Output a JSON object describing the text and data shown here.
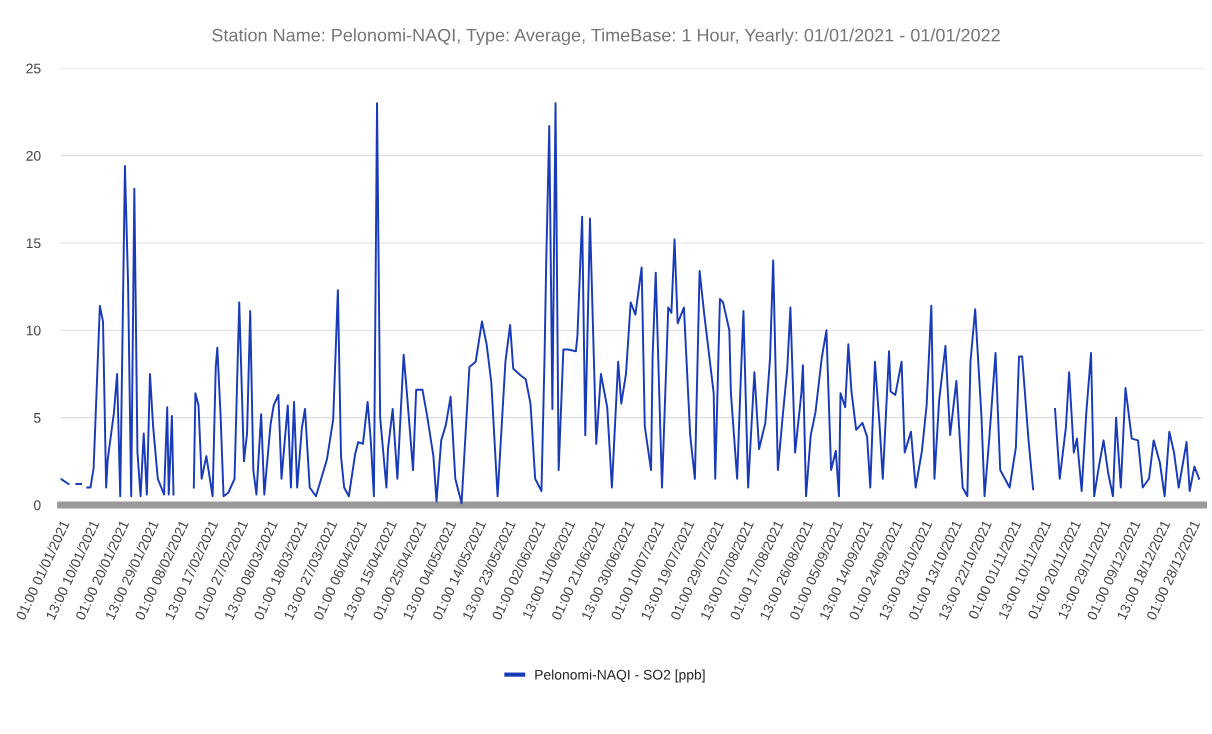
{
  "chart_data": {
    "type": "line",
    "title": "Station Name: Pelonomi-NAQI, Type: Average, TimeBase: 1 Hour, Yearly: 01/01/2021 - 01/01/2022",
    "series": [
      {
        "name": "Pelonomi-NAQI - SO2 [ppb]",
        "color": "#1a3bb8",
        "x": [
          "2021-01-01T01:00",
          "2021-01-03T13:00",
          "2021-01-05T01:00",
          "2021-01-06T01:00",
          "2021-01-07T13:00",
          "2021-01-08T13:00",
          "2021-01-09T13:00",
          "2021-01-10T13:00",
          "2021-01-11T13:00",
          "2021-01-13T13:00",
          "2021-01-14T13:00",
          "2021-01-15T13:00",
          "2021-01-16T01:00",
          "2021-01-18T01:00",
          "2021-01-19T01:00",
          "2021-01-20T01:00",
          "2021-01-21T13:00",
          "2021-01-22T13:00",
          "2021-01-23T13:00",
          "2021-01-24T13:00",
          "2021-01-25T13:00",
          "2021-01-26T13:00",
          "2021-01-27T13:00",
          "2021-01-28T13:00",
          "2021-01-29T13:00",
          "2021-01-30T13:00",
          "2021-02-01T01:00",
          "2021-02-03T01:00",
          "2021-02-04T01:00",
          "2021-02-04T13:00",
          "2021-02-05T13:00",
          "2021-02-06T01:00",
          "2021-02-09T01:00",
          "2021-02-12T13:00",
          "2021-02-13T01:00",
          "2021-02-14T01:00",
          "2021-02-15T01:00",
          "2021-02-16T13:00",
          "2021-02-18T13:00",
          "2021-02-19T13:00",
          "2021-02-20T01:00",
          "2021-02-21T01:00",
          "2021-02-22T01:00",
          "2021-02-23T13:00",
          "2021-02-25T13:00",
          "2021-02-27T01:00",
          "2021-02-28T13:00",
          "2021-03-01T13:00",
          "2021-03-02T13:00",
          "2021-03-03T13:00",
          "2021-03-04T13:00",
          "2021-03-06T01:00",
          "2021-03-07T01:00",
          "2021-03-09T01:00",
          "2021-03-10T01:00",
          "2021-03-11T13:00",
          "2021-03-12T13:00",
          "2021-03-14T13:00",
          "2021-03-15T13:00",
          "2021-03-16T13:00",
          "2021-03-17T13:00",
          "2021-03-19T01:00",
          "2021-03-20T01:00",
          "2021-03-21T13:00",
          "2021-03-23T13:00",
          "2021-03-27T01:00",
          "2021-03-29T01:00",
          "2021-03-30T13:00",
          "2021-03-31T13:00",
          "2021-04-01T13:00",
          "2021-04-03T01:00",
          "2021-04-05T01:00",
          "2021-04-06T01:00",
          "2021-04-07T13:00",
          "2021-04-09T01:00",
          "2021-04-10T01:00",
          "2021-04-11T01:00",
          "2021-04-12T01:00",
          "2021-04-13T01:00",
          "2021-04-15T01:00",
          "2021-04-15T13:00",
          "2021-04-17T01:00",
          "2021-04-18T13:00",
          "2021-04-20T13:00",
          "2021-04-21T13:00",
          "2021-04-23T13:00",
          "2021-04-24T13:00",
          "2021-04-26T13:00",
          "2021-04-28T01:00",
          "2021-04-30T01:00",
          "2021-05-01T01:00",
          "2021-05-02T13:00",
          "2021-05-04T01:00",
          "2021-05-05T13:00",
          "2021-05-07T01:00",
          "2021-05-09T01:00",
          "2021-05-11T13:00",
          "2021-05-13T13:00",
          "2021-05-15T13:00",
          "2021-05-17T01:00",
          "2021-05-18T13:00",
          "2021-05-20T13:00",
          "2021-05-23T01:00",
          "2021-05-24T13:00",
          "2021-05-25T13:00",
          "2021-05-28T01:00",
          "2021-05-29T13:00",
          "2021-05-31T01:00",
          "2021-06-01T13:00",
          "2021-06-03T13:00",
          "2021-06-04T13:00",
          "2021-06-05T01:00",
          "2021-06-06T01:00",
          "2021-06-07T01:00",
          "2021-06-08T01:00",
          "2021-06-09T01:00",
          "2021-06-10T13:00",
          "2021-06-12T01:00",
          "2021-06-14T13:00",
          "2021-06-15T01:00",
          "2021-06-16T13:00",
          "2021-06-17T13:00",
          "2021-06-19T01:00",
          "2021-06-21T01:00",
          "2021-06-22T13:00",
          "2021-06-24T13:00",
          "2021-06-26T01:00",
          "2021-06-28T01:00",
          "2021-06-29T01:00",
          "2021-06-30T13:00",
          "2021-07-02T01:00",
          "2021-07-03T13:00",
          "2021-07-05T13:00",
          "2021-07-06T13:00",
          "2021-07-08T13:00",
          "2021-07-09T01:00",
          "2021-07-10T01:00",
          "2021-07-12T01:00",
          "2021-07-14T01:00",
          "2021-07-15T01:00",
          "2021-07-16T01:00",
          "2021-07-17T01:00",
          "2021-07-19T01:00",
          "2021-07-21T01:00",
          "2021-07-22T13:00",
          "2021-07-24T01:00",
          "2021-07-25T13:00",
          "2021-07-27T13:00",
          "2021-07-28T13:00",
          "2021-07-29T01:00",
          "2021-07-30T13:00",
          "2021-07-31T13:00",
          "2021-08-02T13:00",
          "2021-08-03T01:00",
          "2021-08-05T01:00",
          "2021-08-06T01:00",
          "2021-08-07T01:00",
          "2021-08-08T13:00",
          "2021-08-10T13:00",
          "2021-08-12T01:00",
          "2021-08-14T01:00",
          "2021-08-15T13:00",
          "2021-08-16T13:00",
          "2021-08-18T01:00",
          "2021-08-19T13:00",
          "2021-08-21T01:00",
          "2021-08-22T01:00",
          "2021-08-23T13:00",
          "2021-08-25T13:00",
          "2021-08-26T01:00",
          "2021-08-27T01:00",
          "2021-08-28T13:00",
          "2021-08-30T01:00",
          "2021-09-01T01:00",
          "2021-09-02T13:00",
          "2021-09-04T01:00",
          "2021-09-05T13:00",
          "2021-09-06T13:00",
          "2021-09-07T01:00",
          "2021-09-08T13:00",
          "2021-09-09T13:00",
          "2021-09-10T13:00",
          "2021-09-12T01:00",
          "2021-09-14T01:00",
          "2021-09-15T13:00",
          "2021-09-16T13:00",
          "2021-09-18T01:00",
          "2021-09-19T13:00",
          "2021-09-20T13:00",
          "2021-09-22T13:00",
          "2021-09-23T01:00",
          "2021-09-24T13:00",
          "2021-09-26T13:00",
          "2021-09-27T13:00",
          "2021-09-29T13:00",
          "2021-10-01T01:00",
          "2021-10-03T01:00",
          "2021-10-04T13:00",
          "2021-10-06T01:00",
          "2021-10-07T01:00",
          "2021-10-08T13:00",
          "2021-10-10T13:00",
          "2021-10-12T01:00",
          "2021-10-14T01:00",
          "2021-10-16T01:00",
          "2021-10-17T13:00",
          "2021-10-18T13:00",
          "2021-10-20T01:00",
          "2021-10-22T01:00",
          "2021-10-23T01:00",
          "2021-10-24T13:00",
          "2021-10-26T13:00",
          "2021-10-28T01:00",
          "2021-10-29T13:00",
          "2021-10-31T01:00",
          "2021-11-02T01:00",
          "2021-11-03T01:00",
          "2021-11-04T01:00",
          "2021-11-06T01:00",
          "2021-11-07T13:00",
          "2021-11-11T01:00",
          "2021-11-14T13:00",
          "2021-11-16T01:00",
          "2021-11-18T01:00",
          "2021-11-19T01:00",
          "2021-11-20T13:00",
          "2021-11-21T13:00",
          "2021-11-23T01:00",
          "2021-11-24T13:00",
          "2021-11-26T01:00",
          "2021-11-27T01:00",
          "2021-11-28T13:00",
          "2021-11-30T01:00",
          "2021-12-01T13:00",
          "2021-12-03T01:00",
          "2021-12-04T01:00",
          "2021-12-05T13:00",
          "2021-12-07T01:00",
          "2021-12-09T01:00",
          "2021-12-11T01:00",
          "2021-12-12T13:00",
          "2021-12-14T13:00",
          "2021-12-16T01:00",
          "2021-12-18T01:00",
          "2021-12-19T13:00",
          "2021-12-21T01:00",
          "2021-12-22T13:00",
          "2021-12-24T01:00",
          "2021-12-26T13:00",
          "2021-12-27T13:00",
          "2021-12-29T01:00",
          "2021-12-30T13:00"
        ],
        "values": [
          1.5,
          1.2,
          null,
          1.2,
          1.2,
          null,
          1.0,
          1.0,
          2.1,
          11.4,
          10.5,
          1.0,
          2.6,
          5.3,
          7.5,
          0.5,
          19.4,
          12.7,
          0.5,
          18.1,
          3.0,
          0.5,
          4.1,
          0.6,
          7.5,
          4.5,
          1.5,
          0.6,
          5.6,
          0.6,
          5.1,
          0.6,
          null,
          1.0,
          6.4,
          5.7,
          1.5,
          2.8,
          0.5,
          7.9,
          9.0,
          5.3,
          0.5,
          0.7,
          1.5,
          11.6,
          2.5,
          4.1,
          11.1,
          2.0,
          0.6,
          5.2,
          0.6,
          4.6,
          5.7,
          6.3,
          1.5,
          5.7,
          1.0,
          5.9,
          1.0,
          4.4,
          5.5,
          1.0,
          0.5,
          2.6,
          4.9,
          12.3,
          2.8,
          1.0,
          0.5,
          2.9,
          3.6,
          3.5,
          5.9,
          3.7,
          0.5,
          23.0,
          5.0,
          1.0,
          3.2,
          5.5,
          1.5,
          8.6,
          6.5,
          2.0,
          6.6,
          6.6,
          5.1,
          2.8,
          0.2,
          3.7,
          4.6,
          6.2,
          1.5,
          0.1,
          7.9,
          8.2,
          10.5,
          9.2,
          7.0,
          0.5,
          8.2,
          10.3,
          7.8,
          7.4,
          7.2,
          5.8,
          1.5,
          0.8,
          8.5,
          13.7,
          21.7,
          5.5,
          23.0,
          2.0,
          8.9,
          8.9,
          8.8,
          9.7,
          16.5,
          4.0,
          16.4,
          3.5,
          7.5,
          5.6,
          1.0,
          8.2,
          5.8,
          7.5,
          11.6,
          10.9,
          13.6,
          4.5,
          2.0,
          8.5,
          13.3,
          1.0,
          11.3,
          11.0,
          15.2,
          10.4,
          11.3,
          4.0,
          1.5,
          13.4,
          10.9,
          7.9,
          6.4,
          1.5,
          11.8,
          11.6,
          10.0,
          6.4,
          1.5,
          6.5,
          11.1,
          1.0,
          7.6,
          3.2,
          4.7,
          8.4,
          14.0,
          2.0,
          5.0,
          7.8,
          11.3,
          3.0,
          6.4,
          8.0,
          0.5,
          4.0,
          5.3,
          8.4,
          10.0,
          2.0,
          3.1,
          0.5,
          6.4,
          5.6,
          9.2,
          6.5,
          4.3,
          4.7,
          3.9,
          1.0,
          8.2,
          4.5,
          1.5,
          8.8,
          6.5,
          6.3,
          8.2,
          3.0,
          4.2,
          1.0,
          3.1,
          5.7,
          11.4,
          1.5,
          6.0,
          9.1,
          4.0,
          7.1,
          1.0,
          0.5,
          8.2,
          11.2,
          5.1,
          0.5,
          3.8,
          8.7,
          2.0,
          1.5,
          1.0,
          3.3,
          8.5,
          8.5,
          3.8,
          0.9,
          null,
          5.5,
          1.5,
          4.5,
          7.6,
          3.0,
          3.8,
          0.8,
          5.3,
          8.7,
          0.5,
          2.2,
          3.7,
          1.8,
          0.5,
          5.0,
          1.0,
          6.7,
          3.8,
          3.7,
          1.0,
          1.5,
          3.7,
          2.4,
          0.5,
          4.2,
          3.0,
          1.0,
          3.6,
          0.8,
          2.2,
          1.5
        ]
      }
    ],
    "xlim": [
      "2021-01-01T00:00",
      "2021-12-31T23:00"
    ],
    "xticks": [
      {
        "value": "2021-01-01T01:00",
        "label": "01:00 01/01/2021"
      },
      {
        "value": "2021-01-10T13:00",
        "label": "13:00 10/01/2021"
      },
      {
        "value": "2021-01-20T01:00",
        "label": "01:00 20/01/2021"
      },
      {
        "value": "2021-01-29T13:00",
        "label": "13:00 29/01/2021"
      },
      {
        "value": "2021-02-08T01:00",
        "label": "01:00 08/02/2021"
      },
      {
        "value": "2021-02-17T13:00",
        "label": "13:00 17/02/2021"
      },
      {
        "value": "2021-02-27T01:00",
        "label": "01:00 27/02/2021"
      },
      {
        "value": "2021-03-08T13:00",
        "label": "13:00 08/03/2021"
      },
      {
        "value": "2021-03-18T01:00",
        "label": "01:00 18/03/2021"
      },
      {
        "value": "2021-03-27T13:00",
        "label": "13:00 27/03/2021"
      },
      {
        "value": "2021-04-06T01:00",
        "label": "01:00 06/04/2021"
      },
      {
        "value": "2021-04-15T13:00",
        "label": "13:00 15/04/2021"
      },
      {
        "value": "2021-04-25T01:00",
        "label": "01:00 25/04/2021"
      },
      {
        "value": "2021-05-04T13:00",
        "label": "13:00 04/05/2021"
      },
      {
        "value": "2021-05-14T01:00",
        "label": "01:00 14/05/2021"
      },
      {
        "value": "2021-05-23T13:00",
        "label": "13:00 23/05/2021"
      },
      {
        "value": "2021-06-02T01:00",
        "label": "01:00 02/06/2021"
      },
      {
        "value": "2021-06-11T13:00",
        "label": "13:00 11/06/2021"
      },
      {
        "value": "2021-06-21T01:00",
        "label": "01:00 21/06/2021"
      },
      {
        "value": "2021-06-30T13:00",
        "label": "13:00 30/06/2021"
      },
      {
        "value": "2021-07-10T01:00",
        "label": "01:00 10/07/2021"
      },
      {
        "value": "2021-07-19T13:00",
        "label": "13:00 19/07/2021"
      },
      {
        "value": "2021-07-29T01:00",
        "label": "01:00 29/07/2021"
      },
      {
        "value": "2021-08-07T13:00",
        "label": "13:00 07/08/2021"
      },
      {
        "value": "2021-08-17T01:00",
        "label": "01:00 17/08/2021"
      },
      {
        "value": "2021-08-26T13:00",
        "label": "13:00 26/08/2021"
      },
      {
        "value": "2021-09-05T01:00",
        "label": "01:00 05/09/2021"
      },
      {
        "value": "2021-09-14T13:00",
        "label": "13:00 14/09/2021"
      },
      {
        "value": "2021-09-24T01:00",
        "label": "01:00 24/09/2021"
      },
      {
        "value": "2021-10-03T13:00",
        "label": "13:00 03/10/2021"
      },
      {
        "value": "2021-10-13T01:00",
        "label": "01:00 13/10/2021"
      },
      {
        "value": "2021-10-22T13:00",
        "label": "13:00 22/10/2021"
      },
      {
        "value": "2021-11-01T01:00",
        "label": "01:00 01/11/2021"
      },
      {
        "value": "2021-11-10T13:00",
        "label": "13:00 10/11/2021"
      },
      {
        "value": "2021-11-20T01:00",
        "label": "01:00 20/11/2021"
      },
      {
        "value": "2021-11-29T13:00",
        "label": "13:00 29/11/2021"
      },
      {
        "value": "2021-12-09T01:00",
        "label": "01:00 09/12/2021"
      },
      {
        "value": "2021-12-18T13:00",
        "label": "13:00 18/12/2021"
      },
      {
        "value": "2021-12-28T01:00",
        "label": "01:00 28/12/2021"
      }
    ],
    "ylim": [
      0,
      25
    ],
    "yticks": [
      0,
      5,
      10,
      15,
      20,
      25
    ],
    "grid": "y",
    "legend": "bottom",
    "marker": "none",
    "line_style": "solid"
  }
}
